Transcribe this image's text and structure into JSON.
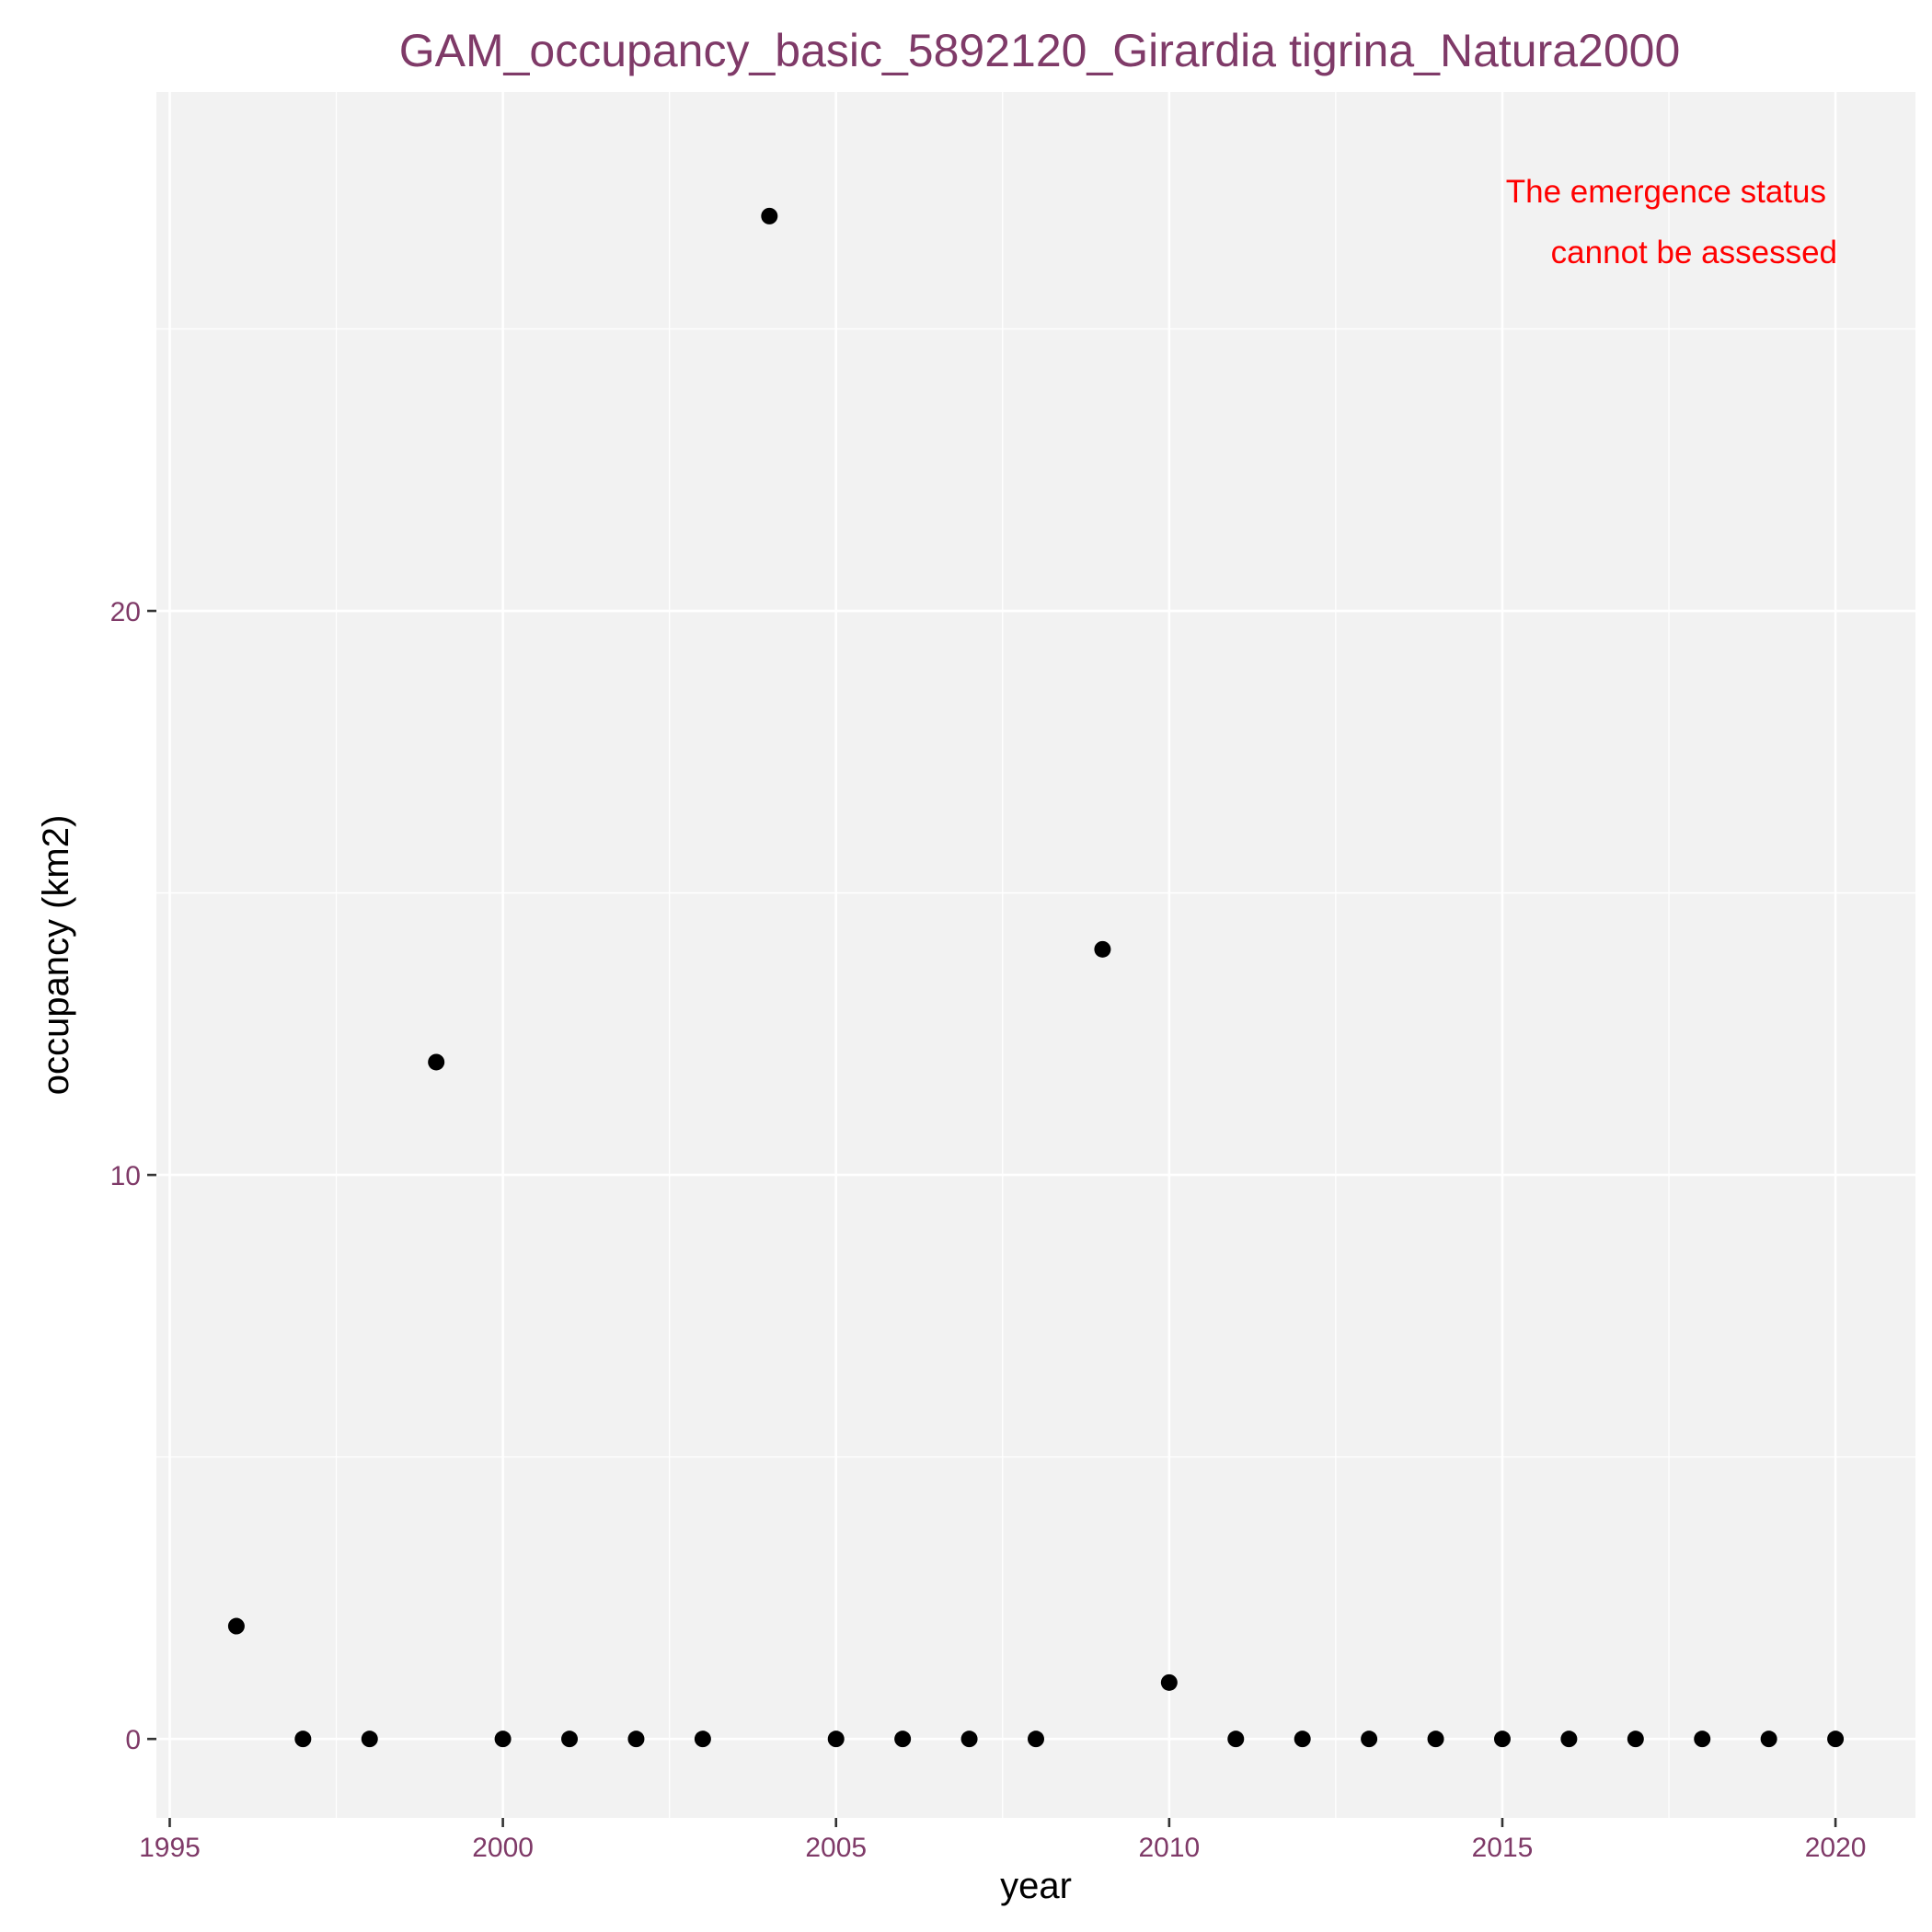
{
  "chart_data": {
    "type": "scatter",
    "title": "GAM_occupancy_basic_5892120_Girardia tigrina_Natura2000",
    "xlabel": "year",
    "ylabel": "occupancy (km2)",
    "xlim": [
      1994.8,
      2021.2
    ],
    "ylim": [
      -1.4,
      29.2
    ],
    "x_ticks": [
      1995,
      2000,
      2005,
      2010,
      2015,
      2020
    ],
    "x_tick_labels": [
      "1995",
      "2000",
      "2005",
      "2010",
      "2015",
      "2020"
    ],
    "y_ticks": [
      0,
      10,
      20
    ],
    "y_tick_labels": [
      "0",
      "10",
      "20"
    ],
    "grid": true,
    "background": "#f2f2f2",
    "point_color": "#000000",
    "annotation": [
      "The emergence status",
      "cannot be assessed"
    ],
    "annotation_color": "#ff0000",
    "points": [
      {
        "x": 1996,
        "y": 2
      },
      {
        "x": 1997,
        "y": 0
      },
      {
        "x": 1998,
        "y": 0
      },
      {
        "x": 1999,
        "y": 12
      },
      {
        "x": 2000,
        "y": 0
      },
      {
        "x": 2001,
        "y": 0
      },
      {
        "x": 2002,
        "y": 0
      },
      {
        "x": 2003,
        "y": 0
      },
      {
        "x": 2004,
        "y": 27
      },
      {
        "x": 2005,
        "y": 0
      },
      {
        "x": 2006,
        "y": 0
      },
      {
        "x": 2007,
        "y": 0
      },
      {
        "x": 2008,
        "y": 0
      },
      {
        "x": 2009,
        "y": 14
      },
      {
        "x": 2010,
        "y": 1
      },
      {
        "x": 2011,
        "y": 0
      },
      {
        "x": 2012,
        "y": 0
      },
      {
        "x": 2013,
        "y": 0
      },
      {
        "x": 2014,
        "y": 0
      },
      {
        "x": 2015,
        "y": 0
      },
      {
        "x": 2016,
        "y": 0
      },
      {
        "x": 2017,
        "y": 0
      },
      {
        "x": 2018,
        "y": 0
      },
      {
        "x": 2019,
        "y": 0
      },
      {
        "x": 2020,
        "y": 0
      }
    ]
  }
}
